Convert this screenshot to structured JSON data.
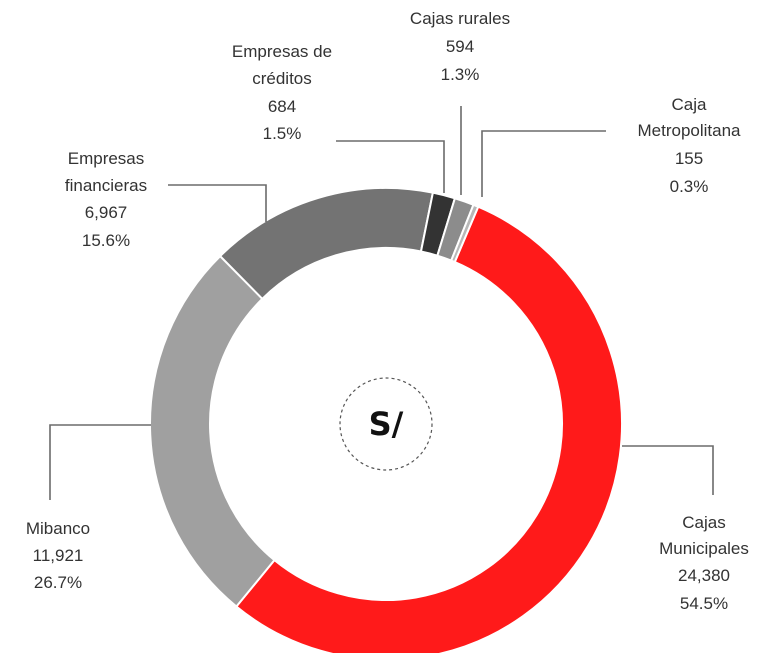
{
  "chart_data": {
    "type": "pie",
    "variant": "donut",
    "title": "",
    "center_label": "S/",
    "start": "top-right",
    "direction": "clockwise",
    "slices": [
      {
        "name": "Cajas Municipales",
        "value": 24380,
        "percent": "54.5%",
        "value_label": "24,380",
        "color": "#ff1a1a"
      },
      {
        "name": "Mibanco",
        "value": 11921,
        "percent": "26.7%",
        "value_label": "11,921",
        "color": "#a0a0a0"
      },
      {
        "name": "Empresas financieras",
        "value": 6967,
        "percent": "15.6%",
        "value_label": "6,967",
        "color": "#737373"
      },
      {
        "name": "Empresas de créditos",
        "value": 684,
        "percent": "1.5%",
        "value_label": "684",
        "color": "#333333"
      },
      {
        "name": "Cajas rurales",
        "value": 594,
        "percent": "1.3%",
        "value_label": "594",
        "color": "#8c8c8c"
      },
      {
        "name": "Caja Metropolitana",
        "value": 155,
        "percent": "0.3%",
        "value_label": "155",
        "color": "#b8b8b8"
      }
    ]
  }
}
